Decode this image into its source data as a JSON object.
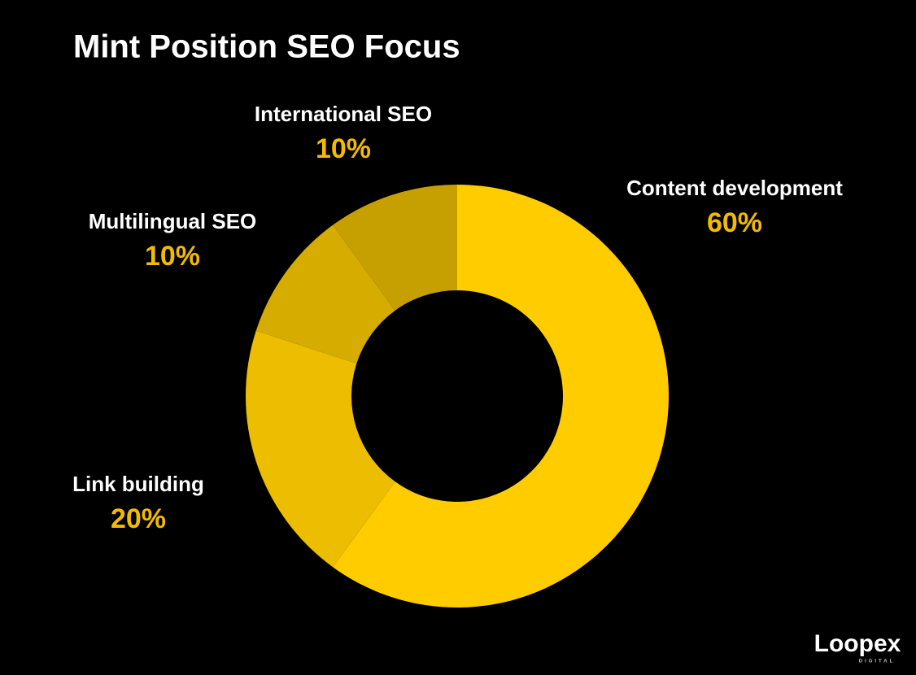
{
  "chart_data": {
    "type": "donut",
    "title": "Mint Position SEO Focus",
    "categories": [
      "Content development",
      "Link building",
      "Multilingual SEO",
      "International SEO"
    ],
    "values": [
      60,
      20,
      10,
      10
    ],
    "value_labels": [
      "60%",
      "20%",
      "10%",
      "10%"
    ],
    "colors": [
      "#ffcc00",
      "#ecbd00",
      "#d6ac00",
      "#c6a000"
    ]
  },
  "logo": "Loopex",
  "logo_subtitle": "DIGITAL"
}
